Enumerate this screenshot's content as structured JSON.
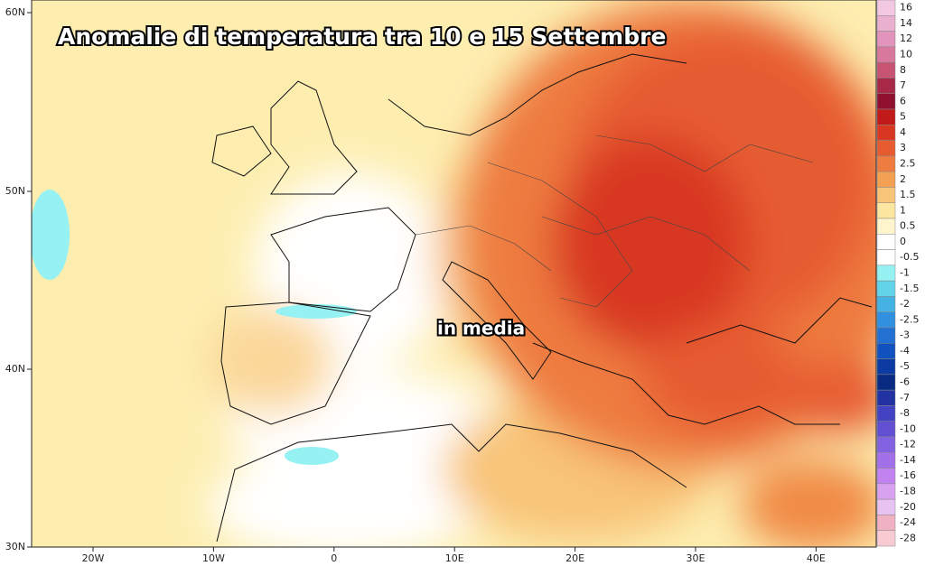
{
  "title": "Anomalie di temperatura tra 10 e 15 Settembre",
  "annotation": "in media",
  "lat_labels": [
    "60N",
    "50N",
    "40N",
    "30N"
  ],
  "lon_labels": [
    "20W",
    "10W",
    "0",
    "10E",
    "20E",
    "30E",
    "40E"
  ],
  "legend": [
    {
      "label": "16",
      "color": "#f2c8e2"
    },
    {
      "label": "14",
      "color": "#eab0d0"
    },
    {
      "label": "12",
      "color": "#e294bc"
    },
    {
      "label": "10",
      "color": "#d8789c"
    },
    {
      "label": "8",
      "color": "#c85474"
    },
    {
      "label": "7",
      "color": "#a82848"
    },
    {
      "label": "6",
      "color": "#901030"
    },
    {
      "label": "5",
      "color": "#c01a1a"
    },
    {
      "label": "4",
      "color": "#d83822"
    },
    {
      "label": "3",
      "color": "#e65c30"
    },
    {
      "label": "2.5",
      "color": "#ee7c40"
    },
    {
      "label": "2",
      "color": "#f4a052"
    },
    {
      "label": "1.5",
      "color": "#f8c478"
    },
    {
      "label": "1",
      "color": "#fde6a0"
    },
    {
      "label": "0.5",
      "color": "#fff5cc"
    },
    {
      "label": "0",
      "color": "#ffffff"
    },
    {
      "label": "-0.5",
      "color": "#ffffff"
    },
    {
      "label": "-1",
      "color": "#96f2f2"
    },
    {
      "label": "-1.5",
      "color": "#62d4ea"
    },
    {
      "label": "-2",
      "color": "#44b2e2"
    },
    {
      "label": "-2.5",
      "color": "#3290e0"
    },
    {
      "label": "-3",
      "color": "#2270d2"
    },
    {
      "label": "-4",
      "color": "#1252c0"
    },
    {
      "label": "-5",
      "color": "#0a3aa2"
    },
    {
      "label": "-6",
      "color": "#082a82"
    },
    {
      "label": "-7",
      "color": "#2232a2"
    },
    {
      "label": "-8",
      "color": "#4242c2"
    },
    {
      "label": "-10",
      "color": "#6250d2"
    },
    {
      "label": "-12",
      "color": "#8262e0"
    },
    {
      "label": "-14",
      "color": "#a270e8"
    },
    {
      "label": "-16",
      "color": "#c282f0"
    },
    {
      "label": "-18",
      "color": "#d8a2f0"
    },
    {
      "label": "-20",
      "color": "#e8c2f0"
    },
    {
      "label": "-24",
      "color": "#f0b2c2"
    },
    {
      "label": "-28",
      "color": "#f8cad2"
    }
  ]
}
